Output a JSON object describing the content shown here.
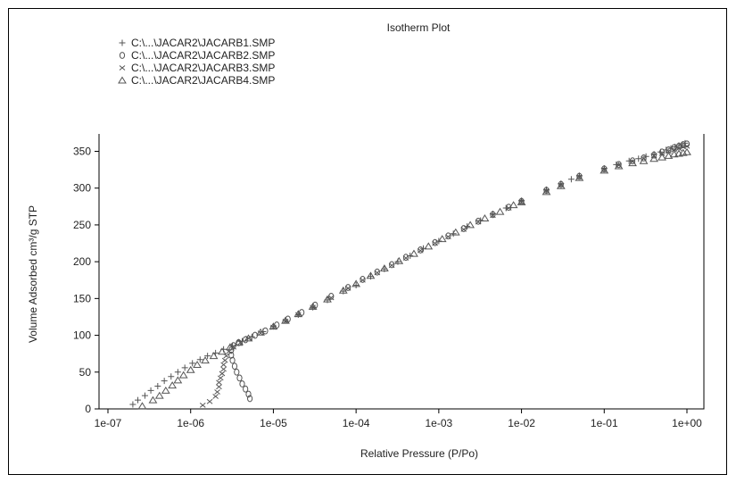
{
  "chart_data": {
    "type": "scatter",
    "title": "Isotherm Plot",
    "xlabel": "Relative Pressure (P/Po)",
    "ylabel": "Volume Adsorbed cm³/g STP",
    "xscale": "log",
    "xlim": [
      1e-07,
      1
    ],
    "ylim": [
      0,
      370
    ],
    "x_tick_values": [
      1e-07,
      1e-06,
      1e-05,
      0.0001,
      0.001,
      0.01,
      0.1,
      1
    ],
    "x_tick_labels": [
      "1e-07",
      "1e-06",
      "1e-05",
      "1e-04",
      "1e-03",
      "1e-02",
      "1e-01",
      "1e+00"
    ],
    "y_ticks": [
      0,
      50,
      100,
      150,
      200,
      250,
      300,
      350
    ],
    "legend_position": "top-left",
    "grid": false,
    "series": [
      {
        "name": "C:\\...\\JACAR2\\JACARB1.SMP",
        "marker": "plus",
        "points": [
          [
            2e-07,
            6
          ],
          [
            2.3e-07,
            12
          ],
          [
            2.8e-07,
            18
          ],
          [
            3.3e-07,
            25
          ],
          [
            4e-07,
            31
          ],
          [
            4.8e-07,
            38
          ],
          [
            5.8e-07,
            44
          ],
          [
            7e-07,
            50
          ],
          [
            8.5e-07,
            56
          ],
          [
            1.05e-06,
            62
          ],
          [
            1.3e-06,
            67
          ],
          [
            1.6e-06,
            72
          ],
          [
            2e-06,
            76
          ],
          [
            2.5e-06,
            81
          ],
          [
            3.2e-06,
            86
          ],
          [
            4.2e-06,
            92
          ],
          [
            5.5e-06,
            98
          ],
          [
            7.5e-06,
            105
          ],
          [
            1e-05,
            112
          ],
          [
            1.4e-05,
            120
          ],
          [
            2e-05,
            128
          ],
          [
            3e-05,
            138
          ],
          [
            4.5e-05,
            148
          ],
          [
            7e-05,
            160
          ],
          [
            0.0001,
            168
          ],
          [
            0.00015,
            180
          ],
          [
            0.00022,
            190
          ],
          [
            0.00032,
            200
          ],
          [
            0.00045,
            208
          ],
          [
            0.00065,
            218
          ],
          [
            0.001,
            228
          ],
          [
            0.0015,
            238
          ],
          [
            0.0022,
            248
          ],
          [
            0.0032,
            256
          ],
          [
            0.0045,
            265
          ],
          [
            0.0065,
            273
          ],
          [
            0.01,
            283
          ],
          [
            0.02,
            298
          ],
          [
            0.03,
            306
          ],
          [
            0.04,
            312
          ],
          [
            0.05,
            317
          ],
          [
            0.1,
            327
          ],
          [
            0.14,
            332
          ],
          [
            0.2,
            337
          ],
          [
            0.26,
            340
          ],
          [
            0.32,
            343
          ],
          [
            0.4,
            346
          ],
          [
            0.48,
            349
          ],
          [
            0.56,
            352
          ],
          [
            0.64,
            354
          ],
          [
            0.72,
            356
          ],
          [
            0.8,
            358
          ],
          [
            0.88,
            359
          ],
          [
            0.95,
            361
          ]
        ]
      },
      {
        "name": "C:\\...\\JACAR2\\JACARB2.SMP",
        "marker": "circle",
        "points": [
          [
            5.2e-06,
            14
          ],
          [
            5e-06,
            20
          ],
          [
            4.6e-06,
            27
          ],
          [
            4.2e-06,
            34
          ],
          [
            3.9e-06,
            42
          ],
          [
            3.6e-06,
            50
          ],
          [
            3.4e-06,
            58
          ],
          [
            3.2e-06,
            66
          ],
          [
            3.1e-06,
            73
          ],
          [
            3.1e-06,
            80
          ],
          [
            3.3e-06,
            86
          ],
          [
            3.8e-06,
            90
          ],
          [
            4.6e-06,
            94
          ],
          [
            6e-06,
            100
          ],
          [
            8e-06,
            106
          ],
          [
            1.1e-05,
            114
          ],
          [
            1.5e-05,
            122
          ],
          [
            2.2e-05,
            131
          ],
          [
            3.2e-05,
            141
          ],
          [
            5e-05,
            153
          ],
          [
            8e-05,
            165
          ],
          [
            0.00012,
            176
          ],
          [
            0.00018,
            186
          ],
          [
            0.00027,
            196
          ],
          [
            0.0004,
            206
          ],
          [
            0.0006,
            216
          ],
          [
            0.0009,
            226
          ],
          [
            0.0013,
            235
          ],
          [
            0.002,
            245
          ],
          [
            0.003,
            255
          ],
          [
            0.0045,
            264
          ],
          [
            0.007,
            274
          ],
          [
            0.01,
            282
          ],
          [
            0.02,
            297
          ],
          [
            0.03,
            305
          ],
          [
            0.05,
            316
          ],
          [
            0.1,
            326
          ],
          [
            0.15,
            332
          ],
          [
            0.22,
            337
          ],
          [
            0.3,
            341
          ],
          [
            0.4,
            345
          ],
          [
            0.5,
            349
          ],
          [
            0.6,
            352
          ],
          [
            0.7,
            355
          ],
          [
            0.8,
            357
          ],
          [
            0.9,
            359
          ],
          [
            1,
            360
          ]
        ]
      },
      {
        "name": "C:\\...\\JACAR2\\JACARB3.SMP",
        "marker": "x",
        "points": [
          [
            1.4e-06,
            5
          ],
          [
            1.7e-06,
            10
          ],
          [
            2e-06,
            17
          ],
          [
            2.1e-06,
            23
          ],
          [
            2.2e-06,
            30
          ],
          [
            2.2e-06,
            36
          ],
          [
            2.3e-06,
            42
          ],
          [
            2.4e-06,
            48
          ],
          [
            2.5e-06,
            54
          ],
          [
            2.5e-06,
            60
          ],
          [
            2.6e-06,
            66
          ],
          [
            2.7e-06,
            72
          ],
          [
            2.9e-06,
            78
          ],
          [
            3.3e-06,
            84
          ],
          [
            4e-06,
            90
          ],
          [
            5e-06,
            96
          ],
          [
            7e-06,
            103
          ],
          [
            1e-05,
            111
          ],
          [
            1.4e-05,
            119
          ],
          [
            2e-05,
            128
          ],
          [
            3e-05,
            138
          ],
          [
            5e-05,
            151
          ],
          [
            8e-05,
            164
          ],
          [
            0.00012,
            175
          ],
          [
            0.00018,
            185
          ],
          [
            0.00027,
            195
          ],
          [
            0.0004,
            205
          ],
          [
            0.0006,
            215
          ],
          [
            0.0009,
            225
          ],
          [
            0.0013,
            234
          ],
          [
            0.002,
            244
          ],
          [
            0.003,
            254
          ],
          [
            0.0045,
            263
          ],
          [
            0.007,
            273
          ],
          [
            0.01,
            281
          ],
          [
            0.02,
            296
          ],
          [
            0.03,
            304
          ],
          [
            0.05,
            315
          ],
          [
            0.1,
            325
          ],
          [
            0.15,
            331
          ],
          [
            0.22,
            336
          ],
          [
            0.3,
            340
          ],
          [
            0.4,
            344
          ],
          [
            0.5,
            347
          ],
          [
            0.6,
            350
          ],
          [
            0.7,
            352
          ],
          [
            0.8,
            354
          ],
          [
            0.9,
            356
          ],
          [
            1,
            357
          ]
        ]
      },
      {
        "name": "C:\\...\\JACAR2\\JACARB4.SMP",
        "marker": "triangle",
        "points": [
          [
            2.6e-07,
            4
          ],
          [
            3.5e-07,
            12
          ],
          [
            4.2e-07,
            18
          ],
          [
            5e-07,
            25
          ],
          [
            6e-07,
            32
          ],
          [
            7e-07,
            39
          ],
          [
            8.2e-07,
            46
          ],
          [
            1e-06,
            53
          ],
          [
            1.2e-06,
            60
          ],
          [
            1.5e-06,
            66
          ],
          [
            1.9e-06,
            72
          ],
          [
            2.4e-06,
            78
          ],
          [
            3e-06,
            84
          ],
          [
            3.8e-06,
            90
          ],
          [
            5e-06,
            96
          ],
          [
            7e-06,
            104
          ],
          [
            1e-05,
            112
          ],
          [
            1.4e-05,
            120
          ],
          [
            2e-05,
            129
          ],
          [
            3e-05,
            139
          ],
          [
            4.5e-05,
            149
          ],
          [
            7e-05,
            161
          ],
          [
            0.0001,
            170
          ],
          [
            0.00015,
            181
          ],
          [
            0.00022,
            191
          ],
          [
            0.00033,
            201
          ],
          [
            0.0005,
            211
          ],
          [
            0.00075,
            221
          ],
          [
            0.0011,
            231
          ],
          [
            0.0016,
            240
          ],
          [
            0.0024,
            250
          ],
          [
            0.0036,
            259
          ],
          [
            0.0055,
            268
          ],
          [
            0.008,
            277
          ],
          [
            0.01,
            281
          ],
          [
            0.02,
            295
          ],
          [
            0.03,
            303
          ],
          [
            0.05,
            314
          ],
          [
            0.1,
            324
          ],
          [
            0.15,
            330
          ],
          [
            0.22,
            334
          ],
          [
            0.3,
            337
          ],
          [
            0.4,
            340
          ],
          [
            0.5,
            342
          ],
          [
            0.6,
            344
          ],
          [
            0.7,
            346
          ],
          [
            0.8,
            347
          ],
          [
            0.9,
            348
          ],
          [
            1,
            349
          ]
        ]
      }
    ]
  }
}
